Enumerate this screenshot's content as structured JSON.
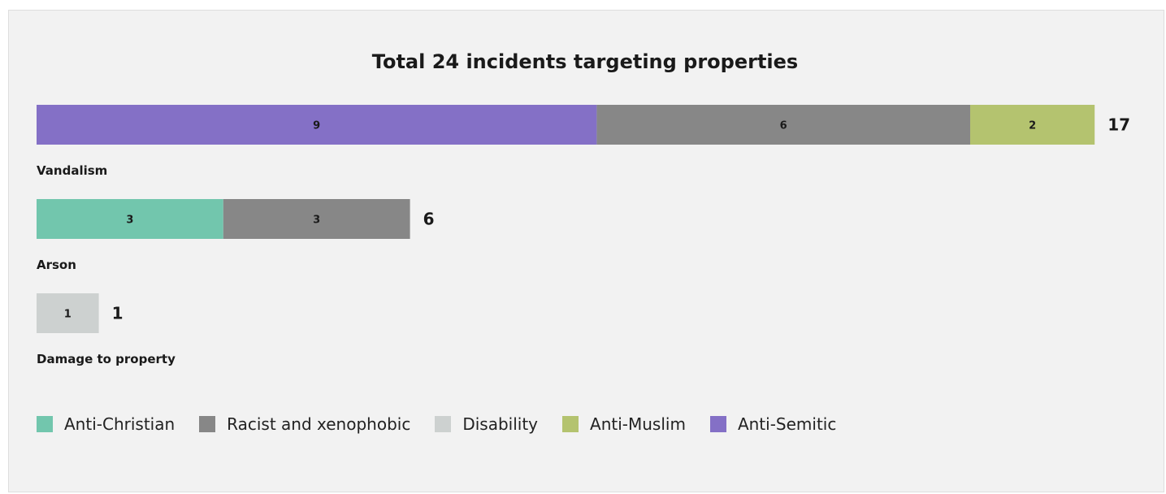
{
  "chart_data": {
    "type": "bar",
    "orientation": "horizontal",
    "stacked": true,
    "title": "Total 24 incidents targeting properties",
    "series": [
      {
        "name": "Anti-Christian",
        "color": "#72c6ad"
      },
      {
        "name": "Racist and xenophobic",
        "color": "#878787"
      },
      {
        "name": "Disability",
        "color": "#cdd1d0"
      },
      {
        "name": "Anti-Muslim",
        "color": "#b4c36f"
      },
      {
        "name": "Anti-Semitic",
        "color": "#8470c6"
      }
    ],
    "categories": [
      {
        "label": "Vandalism",
        "total": 17,
        "segments": [
          {
            "series": "Anti-Semitic",
            "value": 9
          },
          {
            "series": "Racist and xenophobic",
            "value": 6
          },
          {
            "series": "Anti-Muslim",
            "value": 2
          }
        ]
      },
      {
        "label": "Arson",
        "total": 6,
        "segments": [
          {
            "series": "Anti-Christian",
            "value": 3
          },
          {
            "series": "Racist and xenophobic",
            "value": 3
          }
        ]
      },
      {
        "label": "Damage to property",
        "total": 1,
        "segments": [
          {
            "series": "Disability",
            "value": 1
          }
        ]
      }
    ],
    "legend_position": "bottom-left",
    "grid": false
  }
}
